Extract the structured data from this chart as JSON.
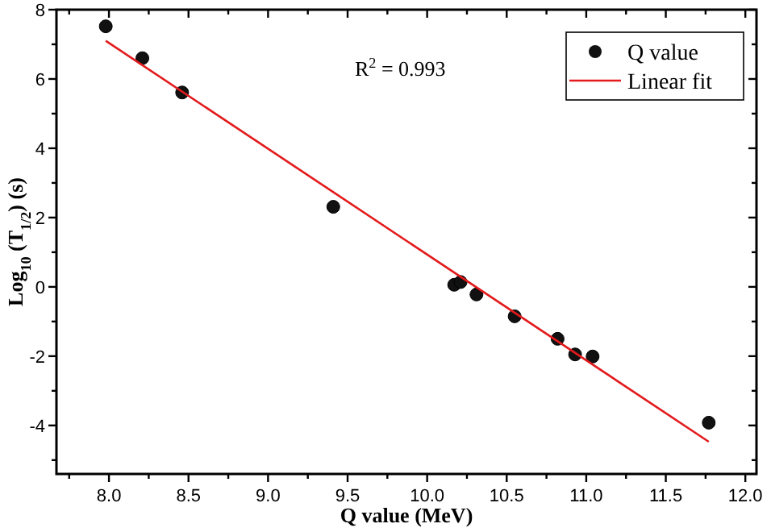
{
  "chart_data": {
    "type": "scatter",
    "xlabel": "Q value (MeV)",
    "ylabel": "Log$_{10}$ (T$_{1/2}$) (s)",
    "annotations": [
      "R$^{2}$ = 0.993"
    ],
    "xlim": [
      7.67,
      12.07
    ],
    "ylim": [
      -5.4,
      8
    ],
    "xticks": [
      {
        "value": 7.75,
        "label": null
      },
      {
        "value": 8.0,
        "label": "8.0"
      },
      {
        "value": 8.25,
        "label": null
      },
      {
        "value": 8.5,
        "label": "8.5"
      },
      {
        "value": 8.75,
        "label": null
      },
      {
        "value": 9.0,
        "label": "9.0"
      },
      {
        "value": 9.25,
        "label": null
      },
      {
        "value": 9.5,
        "label": "9.5"
      },
      {
        "value": 9.75,
        "label": null
      },
      {
        "value": 10.0,
        "label": "10.0"
      },
      {
        "value": 10.25,
        "label": null
      },
      {
        "value": 10.5,
        "label": "10.5"
      },
      {
        "value": 10.75,
        "label": null
      },
      {
        "value": 11.0,
        "label": "11.0"
      },
      {
        "value": 11.25,
        "label": null
      },
      {
        "value": 11.5,
        "label": "11.5"
      },
      {
        "value": 11.75,
        "label": null
      },
      {
        "value": 12.0,
        "label": "12.0"
      }
    ],
    "yticks": [
      {
        "value": -5,
        "label": null
      },
      -4,
      {
        "value": -3,
        "label": null
      },
      -2,
      {
        "value": -1,
        "label": null
      },
      0,
      {
        "value": 1,
        "label": null
      },
      2,
      {
        "value": 3,
        "label": null
      },
      4,
      {
        "value": 5,
        "label": null
      },
      6,
      {
        "value": 7,
        "label": null
      },
      8
    ],
    "legend": "top right",
    "grid": false,
    "series": [
      {
        "name": "Q value",
        "color": "#111111",
        "marker": "circle",
        "x": [
          7.98,
          8.21,
          8.46,
          9.41,
          10.17,
          10.21,
          10.31,
          10.55,
          10.82,
          10.93,
          11.04,
          11.77
        ],
        "values": [
          7.52,
          6.6,
          5.61,
          2.31,
          0.06,
          0.14,
          -0.22,
          -0.85,
          -1.5,
          -1.95,
          -2.01,
          -3.92
        ]
      },
      {
        "name": "Linear fit",
        "type": "line",
        "color": "#e31a1c",
        "marker": "none",
        "line_style": "solid",
        "x": [
          7.98,
          11.77
        ],
        "values": [
          7.1,
          -4.47
        ]
      }
    ]
  }
}
